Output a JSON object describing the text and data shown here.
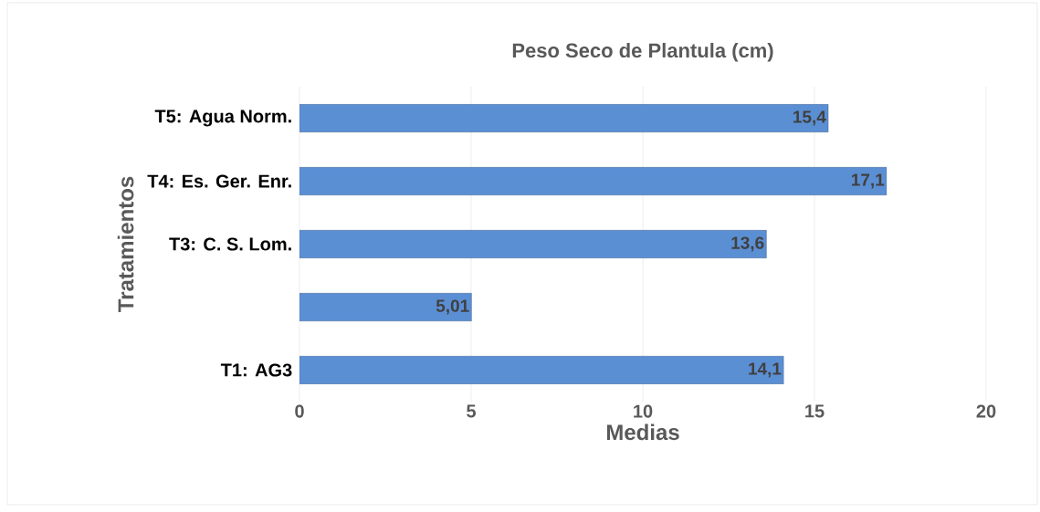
{
  "chart_data": {
    "type": "bar",
    "orientation": "horizontal",
    "title": "Peso Seco de Plantula (cm)",
    "xlabel": "Medias",
    "ylabel": "Tratamientos",
    "categories": [
      "T5: Agua Norm.",
      "T4: Es. Ger. Enr.",
      "T3: C. S. Lom.",
      null,
      "T1: AG3"
    ],
    "values": [
      15.4,
      17.1,
      13.6,
      5.01,
      14.1
    ],
    "value_labels": [
      "15,4",
      "17,1",
      "13,6",
      "5,01",
      "14,1"
    ],
    "color": "#5b8fd4",
    "xlim": [
      0,
      20
    ],
    "xticks": [
      0,
      5,
      10,
      15,
      20
    ],
    "grid": "x"
  }
}
